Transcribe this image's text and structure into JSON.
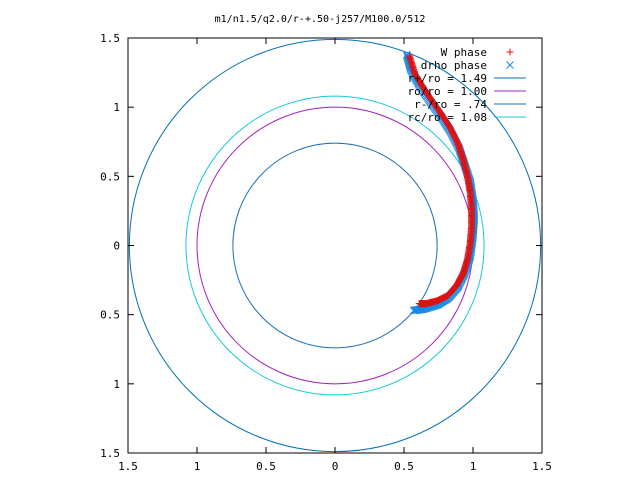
{
  "chart_data": {
    "type": "scatter",
    "title": "m1/n1.5/q2.0/r-+.50-j257/M100.0/512",
    "xlabel": "",
    "ylabel": "",
    "xlim": [
      -1.5,
      1.5
    ],
    "ylim": [
      -1.5,
      1.5
    ],
    "x_ticks": [
      -1.5,
      -1,
      -0.5,
      0,
      0.5,
      1,
      1.5
    ],
    "y_ticks": [
      -1.5,
      -1,
      -0.5,
      0,
      0.5,
      1,
      1.5
    ],
    "x_tick_labels": [
      "1.5",
      "1",
      "0.5",
      "0",
      "0.5",
      "1",
      "1.5"
    ],
    "y_tick_labels": [
      "1.5",
      "1",
      "0.5",
      "0",
      "0.5",
      "1",
      "1.5"
    ],
    "grid": false,
    "legend_position": "top-right",
    "circles": [
      {
        "name": "r+/ro = 1.49",
        "radius": 1.49,
        "color": "#0072b2"
      },
      {
        "name": "ro/ro = 1.00",
        "radius": 1.0,
        "color": "#a020c0"
      },
      {
        "name": "r-/ro = .74",
        "radius": 0.74,
        "color": "#1f6fb8"
      },
      {
        "name": "rc/ro = 1.08",
        "radius": 1.08,
        "color": "#18c8d8"
      }
    ],
    "series": [
      {
        "name": "W phase",
        "marker": "+",
        "color": "#e01010",
        "path": [
          [
            0.54,
            1.37
          ],
          [
            0.58,
            1.24
          ],
          [
            0.66,
            1.11
          ],
          [
            0.75,
            0.98
          ],
          [
            0.83,
            0.86
          ],
          [
            0.89,
            0.74
          ],
          [
            0.93,
            0.62
          ],
          [
            0.96,
            0.5
          ],
          [
            0.98,
            0.38
          ],
          [
            0.99,
            0.26
          ],
          [
            0.99,
            0.14
          ],
          [
            0.98,
            0.02
          ],
          [
            0.96,
            -0.1
          ],
          [
            0.93,
            -0.2
          ],
          [
            0.88,
            -0.29
          ],
          [
            0.82,
            -0.36
          ],
          [
            0.74,
            -0.4
          ],
          [
            0.66,
            -0.42
          ],
          [
            0.61,
            -0.42
          ]
        ]
      },
      {
        "name": "drho phase",
        "marker": "x",
        "color": "#1a8ae6",
        "path": [
          [
            0.52,
            1.38
          ],
          [
            0.55,
            1.27
          ],
          [
            0.61,
            1.16
          ],
          [
            0.69,
            1.04
          ],
          [
            0.77,
            0.93
          ],
          [
            0.84,
            0.82
          ],
          [
            0.9,
            0.7
          ],
          [
            0.94,
            0.58
          ],
          [
            0.98,
            0.46
          ],
          [
            1.0,
            0.33
          ],
          [
            1.01,
            0.2
          ],
          [
            1.0,
            0.06
          ],
          [
            0.98,
            -0.08
          ],
          [
            0.94,
            -0.2
          ],
          [
            0.89,
            -0.3
          ],
          [
            0.82,
            -0.38
          ],
          [
            0.74,
            -0.43
          ],
          [
            0.64,
            -0.46
          ],
          [
            0.57,
            -0.47
          ]
        ]
      }
    ]
  }
}
